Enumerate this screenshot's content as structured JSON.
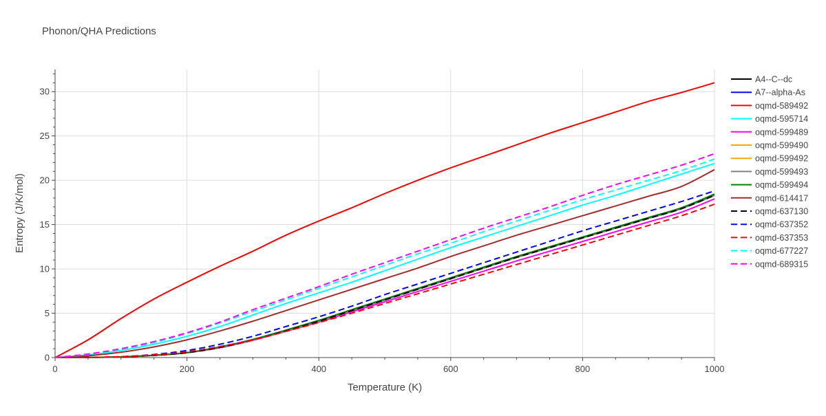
{
  "chart_data": {
    "type": "line",
    "title": "Phonon/QHA Predictions",
    "xlabel": "Temperature (K)",
    "ylabel": "Entropy (J/K/mol)",
    "xlim": [
      0,
      1000
    ],
    "ylim": [
      0,
      32.5
    ],
    "xticks": [
      0,
      200,
      400,
      600,
      800,
      1000
    ],
    "yticks": [
      0,
      5,
      10,
      15,
      20,
      25,
      30
    ],
    "grid": true,
    "legend_position": "right",
    "x": [
      0,
      50,
      100,
      150,
      200,
      250,
      300,
      350,
      400,
      450,
      500,
      550,
      600,
      650,
      700,
      750,
      800,
      850,
      900,
      950,
      1000
    ],
    "series": [
      {
        "name": "A4--C--dc",
        "color": "#000000",
        "dash": "solid",
        "values": [
          0,
          0.02,
          0.08,
          0.25,
          0.55,
          1.15,
          2.0,
          3.0,
          4.1,
          5.3,
          6.5,
          7.7,
          8.9,
          10.1,
          11.3,
          12.4,
          13.5,
          14.6,
          15.7,
          16.8,
          18.3
        ]
      },
      {
        "name": "A7--alpha-As",
        "color": "#0000ff",
        "dash": "solid",
        "values": [
          0,
          0.02,
          0.08,
          0.25,
          0.55,
          1.15,
          2.0,
          3.05,
          4.15,
          5.35,
          6.55,
          7.75,
          8.95,
          10.15,
          11.35,
          12.45,
          13.55,
          14.65,
          15.75,
          16.85,
          18.35
        ]
      },
      {
        "name": "oqmd-589492",
        "color": "#ff0000",
        "dash": "solid",
        "values": [
          0,
          2.0,
          4.4,
          6.6,
          8.5,
          10.3,
          12.0,
          13.8,
          15.4,
          16.9,
          18.5,
          20.0,
          21.4,
          22.7,
          24.0,
          25.3,
          26.5,
          27.7,
          28.9,
          29.9,
          31.0
        ]
      },
      {
        "name": "oqmd-595714",
        "color": "#00ffff",
        "dash": "solid",
        "values": [
          0,
          0.3,
          0.8,
          1.5,
          2.4,
          3.5,
          4.8,
          6.1,
          7.3,
          8.5,
          9.8,
          11.1,
          12.4,
          13.6,
          14.8,
          16.0,
          17.2,
          18.3,
          19.5,
          20.7,
          21.9
        ]
      },
      {
        "name": "oqmd-599489",
        "color": "#ff00ff",
        "dash": "solid",
        "values": [
          0,
          0.02,
          0.08,
          0.25,
          0.55,
          1.1,
          1.95,
          2.95,
          4.0,
          5.15,
          6.3,
          7.45,
          8.6,
          9.75,
          10.9,
          12.0,
          13.1,
          14.2,
          15.3,
          16.4,
          17.9
        ]
      },
      {
        "name": "oqmd-599490",
        "color": "#ffa500",
        "dash": "solid",
        "values": [
          0,
          0.02,
          0.08,
          0.25,
          0.55,
          1.15,
          2.0,
          3.0,
          4.1,
          5.3,
          6.5,
          7.7,
          8.9,
          10.1,
          11.3,
          12.4,
          13.5,
          14.6,
          15.7,
          16.8,
          18.3
        ]
      },
      {
        "name": "oqmd-599492",
        "color": "#ffa500",
        "dash": "solid",
        "values": [
          0,
          0.02,
          0.08,
          0.25,
          0.55,
          1.15,
          2.0,
          3.0,
          4.1,
          5.3,
          6.5,
          7.7,
          8.9,
          10.1,
          11.3,
          12.4,
          13.5,
          14.6,
          15.7,
          16.8,
          18.3
        ]
      },
      {
        "name": "oqmd-599493",
        "color": "#808080",
        "dash": "solid",
        "values": [
          0,
          0.02,
          0.08,
          0.25,
          0.55,
          1.15,
          2.0,
          3.0,
          4.1,
          5.3,
          6.5,
          7.7,
          8.9,
          10.1,
          11.3,
          12.4,
          13.5,
          14.6,
          15.7,
          16.8,
          18.3
        ]
      },
      {
        "name": "oqmd-599494",
        "color": "#008000",
        "dash": "solid",
        "values": [
          0,
          0.02,
          0.08,
          0.25,
          0.55,
          1.2,
          2.05,
          3.1,
          4.2,
          5.4,
          6.6,
          7.8,
          9.0,
          10.2,
          11.4,
          12.5,
          13.6,
          14.7,
          15.8,
          16.9,
          18.45
        ]
      },
      {
        "name": "oqmd-614417",
        "color": "#a52a2a",
        "dash": "solid",
        "values": [
          0,
          0.2,
          0.6,
          1.2,
          2.0,
          3.0,
          4.1,
          5.3,
          6.5,
          7.7,
          8.9,
          10.1,
          11.4,
          12.6,
          13.8,
          14.9,
          16.0,
          17.1,
          18.2,
          19.3,
          21.2
        ]
      },
      {
        "name": "oqmd-637130",
        "color": "#000000",
        "dash": "dash",
        "values": [
          0,
          0.02,
          0.08,
          0.25,
          0.55,
          1.15,
          2.0,
          3.0,
          4.1,
          5.3,
          6.5,
          7.7,
          8.9,
          10.1,
          11.3,
          12.4,
          13.5,
          14.6,
          15.7,
          16.8,
          18.3
        ]
      },
      {
        "name": "oqmd-637352",
        "color": "#0000ff",
        "dash": "dash",
        "values": [
          0,
          0.02,
          0.1,
          0.35,
          0.8,
          1.5,
          2.4,
          3.5,
          4.6,
          5.8,
          7.1,
          8.3,
          9.5,
          10.7,
          11.9,
          13.1,
          14.3,
          15.4,
          16.5,
          17.6,
          18.8
        ]
      },
      {
        "name": "oqmd-637353",
        "color": "#ff0000",
        "dash": "dash",
        "values": [
          0,
          0.02,
          0.1,
          0.3,
          0.65,
          1.25,
          2.0,
          2.95,
          3.95,
          5.0,
          6.1,
          7.2,
          8.3,
          9.4,
          10.5,
          11.6,
          12.7,
          13.8,
          14.9,
          16.0,
          17.3
        ]
      },
      {
        "name": "oqmd-677227",
        "color": "#00ffff",
        "dash": "dash",
        "values": [
          0,
          0.35,
          0.9,
          1.7,
          2.7,
          3.9,
          5.2,
          6.5,
          7.8,
          9.1,
          10.4,
          11.7,
          12.9,
          14.2,
          15.4,
          16.6,
          17.8,
          18.9,
          20.0,
          21.1,
          22.4
        ]
      },
      {
        "name": "oqmd-689315",
        "color": "#ff00ff",
        "dash": "dash",
        "values": [
          0,
          0.4,
          1.0,
          1.8,
          2.8,
          4.0,
          5.4,
          6.7,
          8.0,
          9.4,
          10.7,
          12.0,
          13.3,
          14.6,
          15.8,
          17.0,
          18.3,
          19.5,
          20.6,
          21.7,
          23.0
        ]
      }
    ]
  }
}
